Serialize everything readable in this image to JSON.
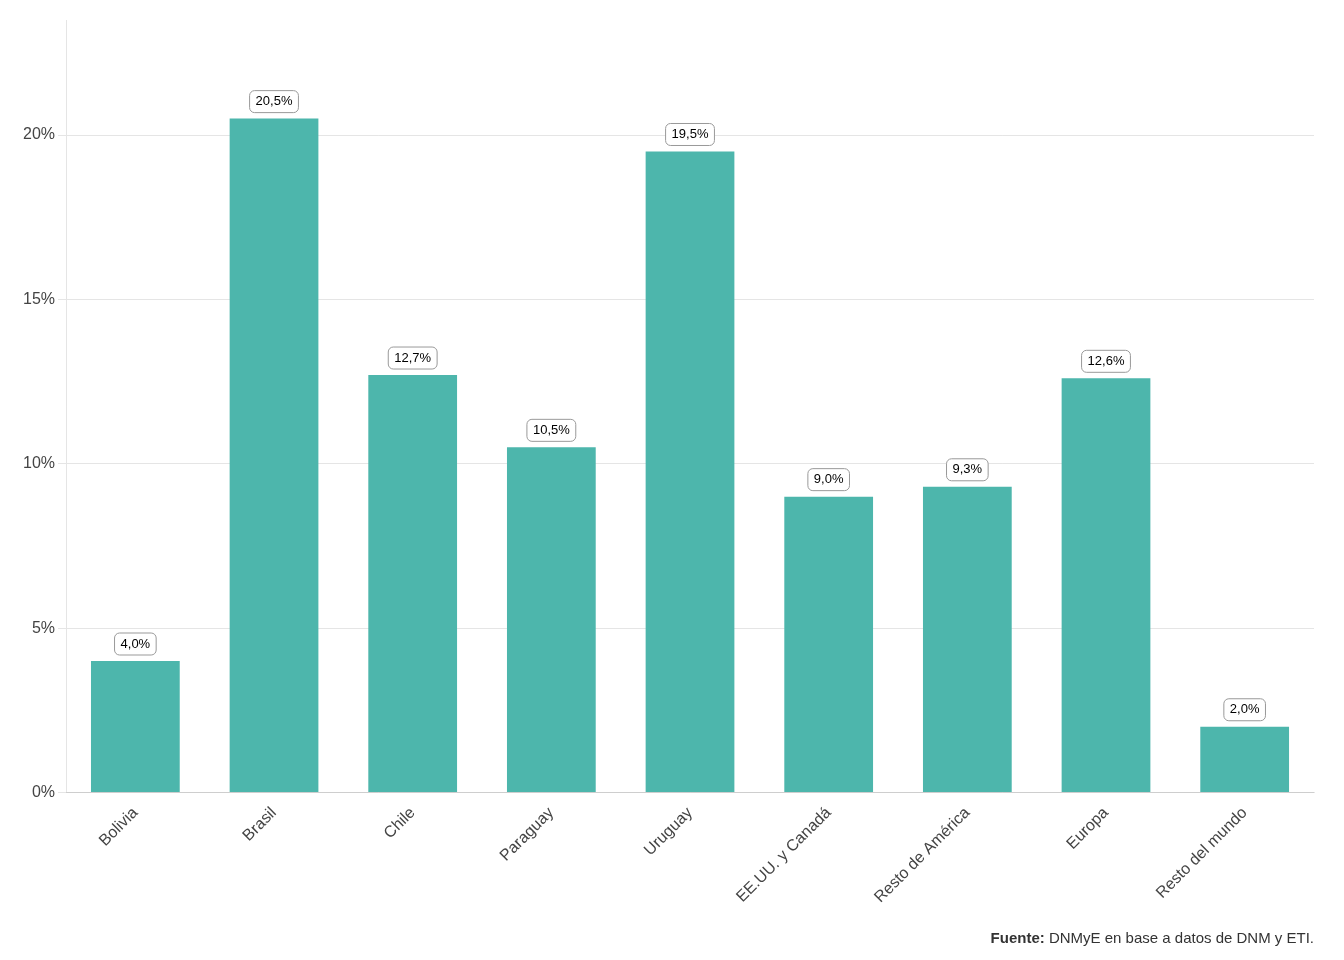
{
  "chart_data": {
    "type": "bar",
    "categories": [
      "Bolivia",
      "Brasil",
      "Chile",
      "Paraguay",
      "Uruguay",
      "EE.UU. y Canadá",
      "Resto de América",
      "Europa",
      "Resto del mundo"
    ],
    "values": [
      4.0,
      20.5,
      12.7,
      10.5,
      19.5,
      9.0,
      9.3,
      12.6,
      2.0
    ],
    "value_labels": [
      "4,0%",
      "20,5%",
      "12,7%",
      "10,5%",
      "19,5%",
      "9,0%",
      "9,3%",
      "12,6%",
      "2,0%"
    ],
    "data_labels": true,
    "color": "#4DB6AC",
    "ylim": [
      0,
      23.5
    ],
    "yticks": [
      {
        "value": 0,
        "label": "0%"
      },
      {
        "value": 5,
        "label": "5%"
      },
      {
        "value": 10,
        "label": "10%"
      },
      {
        "value": 15,
        "label": "15%"
      },
      {
        "value": 20,
        "label": "20%"
      }
    ],
    "grid": true,
    "annotations": [
      "Fuente: DNMyE en base a datos de DNM y ETI."
    ]
  }
}
